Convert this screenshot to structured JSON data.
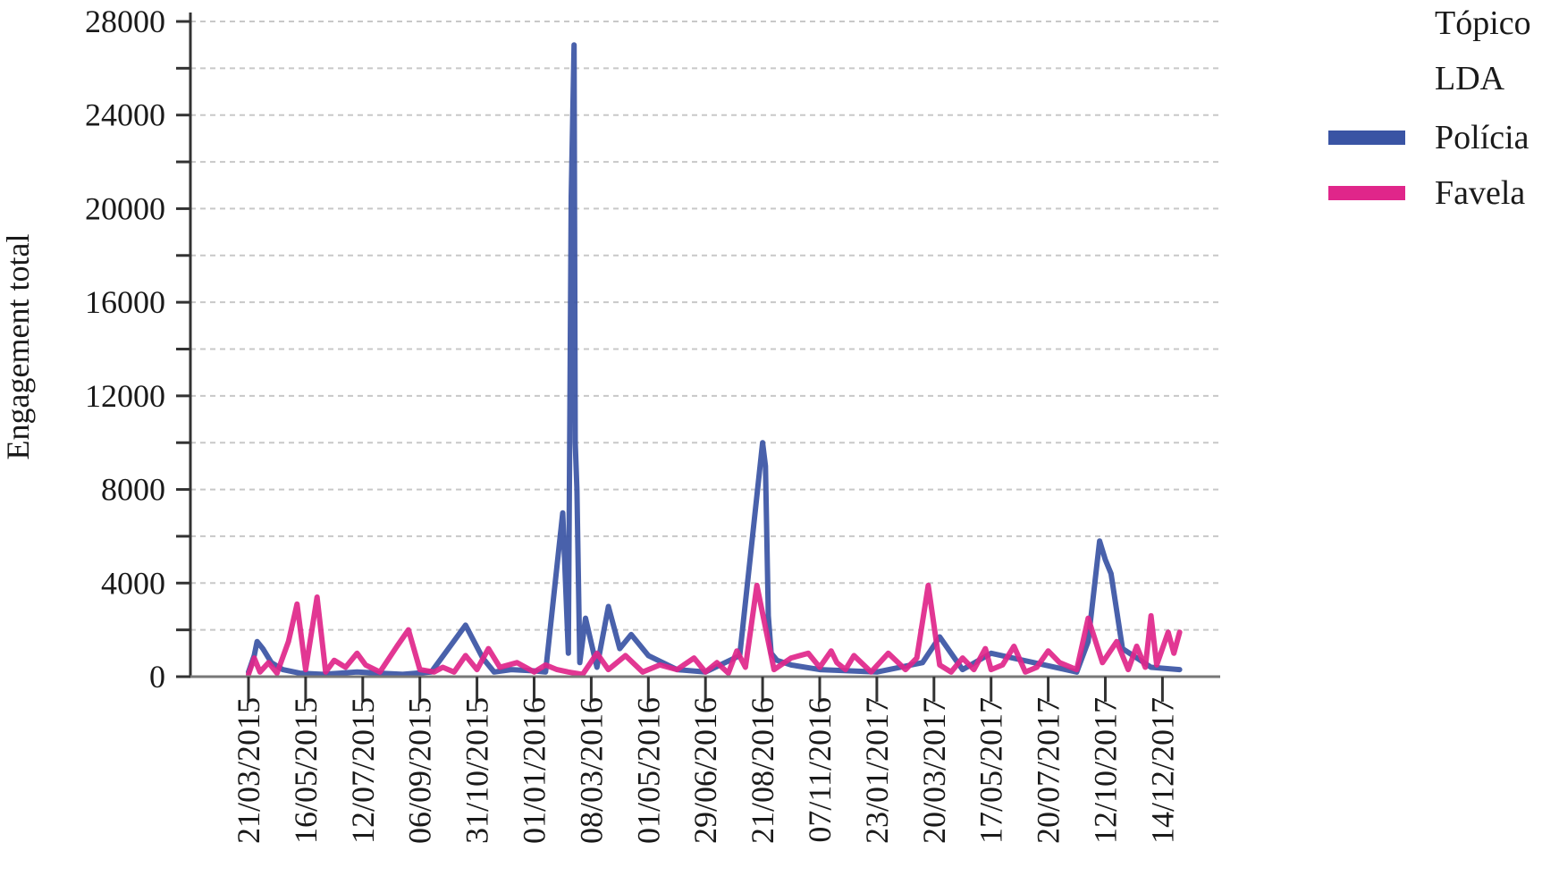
{
  "chart_data": {
    "type": "line",
    "title": "",
    "xlabel": "",
    "ylabel": "Engagement total",
    "ylim": [
      0,
      28000
    ],
    "y_ticks": [
      0,
      4000,
      8000,
      12000,
      16000,
      20000,
      24000,
      28000
    ],
    "x_tick_labels": [
      "21/03/2015",
      "16/05/2015",
      "12/07/2015",
      "06/09/2015",
      "31/10/2015",
      "01/01/2016",
      "08/03/2016",
      "01/05/2016",
      "29/06/2016",
      "21/08/2016",
      "07/11/2016",
      "23/01/2017",
      "20/03/2017",
      "17/05/2017",
      "20/07/2017",
      "12/10/2017",
      "14/12/2017"
    ],
    "grid": true,
    "legend": {
      "title": "Tópico",
      "subtitle": "LDA",
      "position": "right",
      "entries": [
        {
          "name": "Polícia",
          "color": "#3a54a4"
        },
        {
          "name": "Favela",
          "color": "#e0268a"
        }
      ]
    },
    "series": [
      {
        "name": "Polícia",
        "color": "#3a54a4",
        "x": [
          0,
          0.1,
          0.15,
          0.25,
          0.4,
          0.6,
          0.9,
          1.3,
          1.9,
          2.3,
          2.7,
          3.2,
          3.8,
          4.1,
          4.3,
          4.6,
          5.0,
          5.2,
          5.5,
          5.6,
          5.65,
          5.7,
          5.72,
          5.75,
          5.8,
          5.9,
          6.1,
          6.3,
          6.5,
          6.7,
          7.0,
          7.5,
          8.0,
          8.6,
          9.0,
          9.05,
          9.1,
          9.15,
          9.25,
          9.5,
          10.0,
          11.0,
          11.8,
          12.1,
          12.5,
          13.0,
          14.5,
          14.7,
          14.9,
          15.0,
          15.1,
          15.3,
          15.8,
          16.3
        ],
        "y": [
          200,
          900,
          1500,
          1200,
          600,
          300,
          150,
          100,
          200,
          150,
          100,
          200,
          2200,
          800,
          200,
          300,
          250,
          200,
          7000,
          1000,
          20500,
          27000,
          10000,
          8000,
          600,
          2500,
          400,
          3000,
          1200,
          1800,
          900,
          300,
          200,
          900,
          10000,
          9000,
          2600,
          1000,
          700,
          500,
          300,
          200,
          600,
          1700,
          300,
          1000,
          200,
          1500,
          5800,
          5000,
          4400,
          1200,
          400,
          300
        ]
      },
      {
        "name": "Favela",
        "color": "#e0268a",
        "x": [
          0,
          0.1,
          0.2,
          0.35,
          0.5,
          0.7,
          0.85,
          1.0,
          1.2,
          1.35,
          1.5,
          1.7,
          1.9,
          2.05,
          2.3,
          2.6,
          2.8,
          3.0,
          3.25,
          3.4,
          3.6,
          3.8,
          4.0,
          4.2,
          4.4,
          4.7,
          5.0,
          5.2,
          5.4,
          5.6,
          5.85,
          6.1,
          6.3,
          6.6,
          6.9,
          7.2,
          7.5,
          7.8,
          8.0,
          8.2,
          8.4,
          8.55,
          8.7,
          8.9,
          9.2,
          9.5,
          9.8,
          10.0,
          10.2,
          10.3,
          10.45,
          10.6,
          10.9,
          11.2,
          11.5,
          11.7,
          11.9,
          12.1,
          12.3,
          12.5,
          12.7,
          12.9,
          13.0,
          13.2,
          13.4,
          13.6,
          13.8,
          14.0,
          14.2,
          14.5,
          14.7,
          14.95,
          15.2,
          15.4,
          15.55,
          15.7,
          15.8,
          15.9,
          16.1,
          16.2,
          16.3
        ],
        "y": [
          100,
          800,
          200,
          600,
          150,
          1500,
          3100,
          300,
          3400,
          200,
          700,
          400,
          1000,
          500,
          200,
          1300,
          2000,
          300,
          200,
          400,
          200,
          900,
          300,
          1200,
          400,
          600,
          200,
          500,
          300,
          200,
          100,
          1000,
          300,
          900,
          200,
          500,
          300,
          800,
          200,
          600,
          150,
          1100,
          400,
          3900,
          300,
          800,
          1000,
          400,
          1100,
          600,
          300,
          900,
          200,
          1000,
          300,
          800,
          3900,
          500,
          200,
          800,
          300,
          1200,
          300,
          500,
          1300,
          200,
          400,
          1100,
          600,
          300,
          2500,
          600,
          1500,
          300,
          1300,
          400,
          2600,
          500,
          1900,
          1000,
          1900
        ]
      }
    ]
  }
}
